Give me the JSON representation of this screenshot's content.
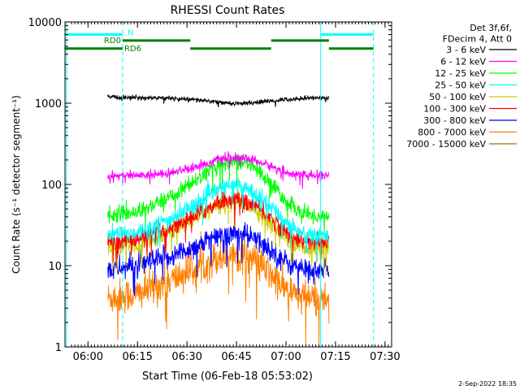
{
  "chart_data": {
    "type": "line",
    "title": "RHESSI Count Rates",
    "xlabel": "Start Time (06-Feb-18 05:53:02)",
    "ylabel": "Count Rate (s⁻¹ detector segment⁻¹)",
    "x_axis": {
      "type": "time",
      "range": [
        "05:53:02",
        "07:32:00"
      ],
      "ticks": [
        "06:00",
        "06:15",
        "06:30",
        "06:45",
        "07:00",
        "07:15",
        "07:30"
      ]
    },
    "y_axis": {
      "type": "log",
      "range": [
        1,
        10000
      ],
      "ticks": [
        "1",
        "10",
        "100",
        "1000",
        "10000"
      ]
    },
    "legend": {
      "position": "top-right outside",
      "header": [
        "Det 3f,6f,",
        "FDecim 4, Att 0"
      ],
      "entries": [
        {
          "label": "3 - 6 keV",
          "color": "#000000"
        },
        {
          "label": "6 - 12 keV",
          "color": "#ff00ff"
        },
        {
          "label": "12 - 25 keV",
          "color": "#00ff00"
        },
        {
          "label": "25 - 50 keV",
          "color": "#00ffff"
        },
        {
          "label": "50 - 100 keV",
          "color": "#cccc00"
        },
        {
          "label": "100 - 300 keV",
          "color": "#ff0000"
        },
        {
          "label": "300 - 800 keV",
          "color": "#0000ff"
        },
        {
          "label": "800 - 7000 keV",
          "color": "#ff8000"
        },
        {
          "label": "7000 - 15000 keV",
          "color": "#808000"
        }
      ]
    },
    "data_window": {
      "start": "06:06",
      "end": "07:14"
    },
    "series": [
      {
        "name": "3 - 6 keV",
        "color": "#000000",
        "noise": 0.025,
        "x": [
          "06:06",
          "06:15",
          "06:25",
          "06:35",
          "06:40",
          "06:45",
          "06:50",
          "06:55",
          "07:00",
          "07:05",
          "07:10",
          "07:13"
        ],
        "y": [
          1180,
          1170,
          1150,
          1080,
          1020,
          990,
          1010,
          1060,
          1110,
          1150,
          1170,
          1150
        ]
      },
      {
        "name": "6 - 12 keV",
        "color": "#ff00ff",
        "noise": 0.05,
        "x": [
          "06:06",
          "06:15",
          "06:25",
          "06:35",
          "06:40",
          "06:45",
          "06:50",
          "06:55",
          "07:00",
          "07:05",
          "07:10",
          "07:13"
        ],
        "y": [
          130,
          128,
          140,
          175,
          205,
          215,
          200,
          170,
          140,
          130,
          128,
          130
        ]
      },
      {
        "name": "12 - 25 keV",
        "color": "#00ff00",
        "noise": 0.09,
        "x": [
          "06:06",
          "06:15",
          "06:25",
          "06:35",
          "06:40",
          "06:45",
          "06:50",
          "06:55",
          "07:00",
          "07:05",
          "07:10",
          "07:13"
        ],
        "y": [
          42,
          46,
          70,
          130,
          180,
          200,
          165,
          110,
          62,
          44,
          40,
          42
        ]
      },
      {
        "name": "25 - 50 keV",
        "color": "#00ffff",
        "noise": 0.1,
        "x": [
          "06:06",
          "06:15",
          "06:25",
          "06:35",
          "06:40",
          "06:45",
          "06:50",
          "06:55",
          "07:00",
          "07:05",
          "07:10",
          "07:13"
        ],
        "y": [
          24,
          26,
          37,
          65,
          90,
          98,
          82,
          55,
          34,
          25,
          23,
          24
        ]
      },
      {
        "name": "50 - 100 keV",
        "color": "#cccc00",
        "noise": 0.1,
        "x": [
          "06:06",
          "06:15",
          "06:25",
          "06:35",
          "06:40",
          "06:45",
          "06:50",
          "06:55",
          "07:00",
          "07:05",
          "07:10",
          "07:13"
        ],
        "y": [
          17,
          18,
          26,
          44,
          58,
          62,
          52,
          36,
          23,
          17,
          16,
          17
        ]
      },
      {
        "name": "100 - 300 keV",
        "color": "#ff0000",
        "noise": 0.1,
        "x": [
          "06:06",
          "06:15",
          "06:25",
          "06:35",
          "06:40",
          "06:45",
          "06:50",
          "06:55",
          "07:00",
          "07:05",
          "07:10",
          "07:13"
        ],
        "y": [
          20,
          21,
          29,
          47,
          62,
          66,
          56,
          40,
          26,
          20,
          19,
          20
        ]
      },
      {
        "name": "300 - 800 keV",
        "color": "#0000ff",
        "noise": 0.13,
        "x": [
          "06:06",
          "06:15",
          "06:25",
          "06:35",
          "06:40",
          "06:45",
          "06:50",
          "06:55",
          "07:00",
          "07:05",
          "07:10",
          "07:13"
        ],
        "y": [
          9,
          10,
          13,
          19,
          24,
          25,
          22,
          16,
          11,
          9,
          8.5,
          9
        ]
      },
      {
        "name": "800 - 7000 keV",
        "color": "#ff8000",
        "noise": 0.2,
        "x": [
          "06:06",
          "06:15",
          "06:25",
          "06:35",
          "06:40",
          "06:45",
          "06:50",
          "06:55",
          "07:00",
          "07:05",
          "07:10",
          "07:13"
        ],
        "y": [
          4,
          4.5,
          6.5,
          10.5,
          13,
          14,
          12,
          8,
          5,
          4,
          3.8,
          4
        ]
      }
    ],
    "annotations": {
      "solid_lines": [
        {
          "color": "#00ffff",
          "x": "05:53:30"
        },
        {
          "color": "#00ffff",
          "x": "07:10:30"
        }
      ],
      "dashed_lines": [
        {
          "color": "#00ffff",
          "x": "06:10:30"
        },
        {
          "color": "#00ffff",
          "x": "07:26:30"
        }
      ],
      "night_bars": [
        {
          "label": "N",
          "color": "#00ffff",
          "y": 7000,
          "segments": [
            [
              "05:53:02",
              "06:10:30"
            ],
            [
              "07:10:30",
              "07:26:30"
            ]
          ]
        }
      ],
      "rd_bars": [
        {
          "label": "RD0",
          "color": "#008000",
          "y": 5900,
          "segments": [
            [
              "06:10:30",
              "06:31"
            ],
            [
              "06:55:30",
              "07:13"
            ]
          ]
        },
        {
          "label": "RD6",
          "color": "#008000",
          "y": 4700,
          "segments": [
            [
              "05:53:02",
              "06:10:30"
            ],
            [
              "06:31",
              "06:55:30"
            ],
            [
              "07:13",
              "07:26:30"
            ]
          ]
        }
      ]
    }
  },
  "footer": {
    "date": "2-Sep-2022 18:35"
  }
}
